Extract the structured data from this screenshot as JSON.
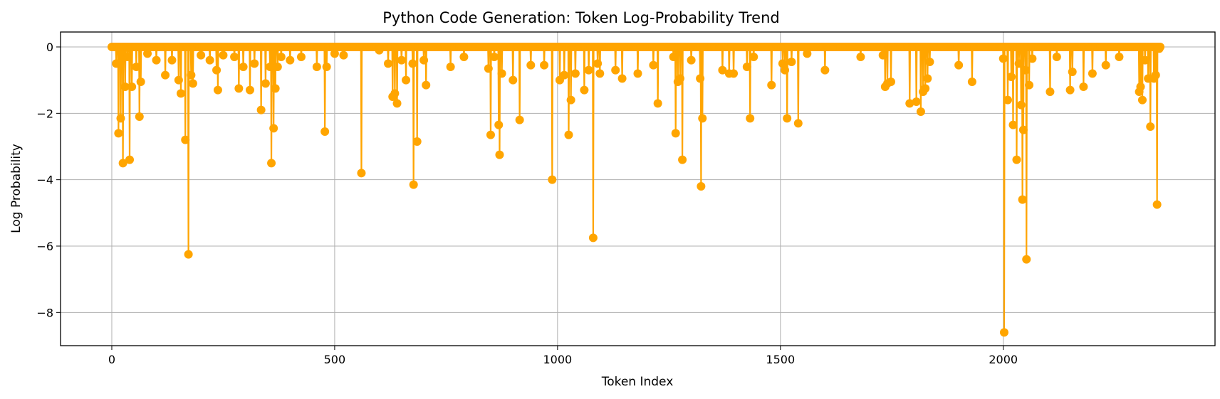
{
  "chart_data": {
    "type": "line",
    "title": "Python Code Generation: Token Log-Probability Trend",
    "xlabel": "Token Index",
    "ylabel": "Log Probability",
    "xlim": [
      -115,
      2475
    ],
    "ylim": [
      -9.0,
      0.45
    ],
    "xticks": [
      0,
      500,
      1000,
      1500,
      2000
    ],
    "yticks": [
      -8,
      -6,
      -4,
      -2,
      0
    ],
    "ytick_labels": [
      "−8",
      "−6",
      "−4",
      "−2",
      "0"
    ],
    "grid": true,
    "marker": "circle",
    "color": "#ffa500",
    "n_points": 2353,
    "baseline_value": 0,
    "dips": [
      [
        10,
        -0.5
      ],
      [
        15,
        -2.6
      ],
      [
        20,
        -2.15
      ],
      [
        25,
        -3.5
      ],
      [
        30,
        -1.2
      ],
      [
        35,
        -0.3
      ],
      [
        40,
        -3.4
      ],
      [
        45,
        -1.2
      ],
      [
        55,
        -0.6
      ],
      [
        62,
        -2.1
      ],
      [
        65,
        -1.05
      ],
      [
        80,
        -0.2
      ],
      [
        100,
        -0.4
      ],
      [
        120,
        -0.85
      ],
      [
        135,
        -0.4
      ],
      [
        150,
        -1.0
      ],
      [
        155,
        -1.4
      ],
      [
        165,
        -2.8
      ],
      [
        172,
        -6.25
      ],
      [
        178,
        -0.85
      ],
      [
        182,
        -1.1
      ],
      [
        200,
        -0.25
      ],
      [
        220,
        -0.4
      ],
      [
        235,
        -0.7
      ],
      [
        238,
        -1.3
      ],
      [
        250,
        -0.25
      ],
      [
        275,
        -0.3
      ],
      [
        285,
        -1.25
      ],
      [
        295,
        -0.6
      ],
      [
        310,
        -1.3
      ],
      [
        320,
        -0.5
      ],
      [
        335,
        -1.9
      ],
      [
        345,
        -1.1
      ],
      [
        355,
        -0.6
      ],
      [
        358,
        -3.5
      ],
      [
        363,
        -2.45
      ],
      [
        367,
        -1.25
      ],
      [
        372,
        -0.6
      ],
      [
        380,
        -0.3
      ],
      [
        400,
        -0.4
      ],
      [
        425,
        -0.3
      ],
      [
        460,
        -0.6
      ],
      [
        478,
        -2.55
      ],
      [
        482,
        -0.6
      ],
      [
        500,
        -0.2
      ],
      [
        520,
        -0.25
      ],
      [
        560,
        -3.8
      ],
      [
        600,
        -0.1
      ],
      [
        620,
        -0.5
      ],
      [
        630,
        -1.5
      ],
      [
        635,
        -1.4
      ],
      [
        640,
        -1.7
      ],
      [
        650,
        -0.4
      ],
      [
        660,
        -1.0
      ],
      [
        675,
        -0.5
      ],
      [
        677,
        -4.15
      ],
      [
        685,
        -2.85
      ],
      [
        700,
        -0.4
      ],
      [
        705,
        -1.15
      ],
      [
        760,
        -0.6
      ],
      [
        790,
        -0.3
      ],
      [
        845,
        -0.65
      ],
      [
        850,
        -2.65
      ],
      [
        858,
        -0.3
      ],
      [
        868,
        -2.35
      ],
      [
        870,
        -3.25
      ],
      [
        875,
        -0.8
      ],
      [
        900,
        -1.0
      ],
      [
        915,
        -2.2
      ],
      [
        940,
        -0.55
      ],
      [
        970,
        -0.55
      ],
      [
        988,
        -4.0
      ],
      [
        1005,
        -1.0
      ],
      [
        1015,
        -0.85
      ],
      [
        1025,
        -2.65
      ],
      [
        1030,
        -1.6
      ],
      [
        1040,
        -0.8
      ],
      [
        1060,
        -1.3
      ],
      [
        1070,
        -0.7
      ],
      [
        1080,
        -5.75
      ],
      [
        1090,
        -0.5
      ],
      [
        1095,
        -0.8
      ],
      [
        1130,
        -0.7
      ],
      [
        1145,
        -0.95
      ],
      [
        1180,
        -0.8
      ],
      [
        1215,
        -0.55
      ],
      [
        1225,
        -1.7
      ],
      [
        1260,
        -0.3
      ],
      [
        1265,
        -2.6
      ],
      [
        1270,
        -1.05
      ],
      [
        1275,
        -0.95
      ],
      [
        1280,
        -3.4
      ],
      [
        1300,
        -0.4
      ],
      [
        1320,
        -0.95
      ],
      [
        1322,
        -4.2
      ],
      [
        1325,
        -2.15
      ],
      [
        1370,
        -0.7
      ],
      [
        1385,
        -0.8
      ],
      [
        1395,
        -0.8
      ],
      [
        1425,
        -0.6
      ],
      [
        1432,
        -2.15
      ],
      [
        1440,
        -0.3
      ],
      [
        1480,
        -1.15
      ],
      [
        1505,
        -0.5
      ],
      [
        1510,
        -0.7
      ],
      [
        1515,
        -2.15
      ],
      [
        1525,
        -0.45
      ],
      [
        1540,
        -2.3
      ],
      [
        1560,
        -0.2
      ],
      [
        1600,
        -0.7
      ],
      [
        1680,
        -0.3
      ],
      [
        1730,
        -0.25
      ],
      [
        1735,
        -1.2
      ],
      [
        1740,
        -1.1
      ],
      [
        1748,
        -1.05
      ],
      [
        1790,
        -1.7
      ],
      [
        1805,
        -1.65
      ],
      [
        1815,
        -1.95
      ],
      [
        1820,
        -1.35
      ],
      [
        1825,
        -1.25
      ],
      [
        1830,
        -0.95
      ],
      [
        1835,
        -0.45
      ],
      [
        1900,
        -0.55
      ],
      [
        1930,
        -1.05
      ],
      [
        2000,
        -0.35
      ],
      [
        2002,
        -8.6
      ],
      [
        2010,
        -1.6
      ],
      [
        2018,
        -0.9
      ],
      [
        2022,
        -2.35
      ],
      [
        2030,
        -3.4
      ],
      [
        2035,
        -0.5
      ],
      [
        2040,
        -1.75
      ],
      [
        2043,
        -4.6
      ],
      [
        2045,
        -2.5
      ],
      [
        2050,
        -0.7
      ],
      [
        2052,
        -6.4
      ],
      [
        2058,
        -1.15
      ],
      [
        2065,
        -0.35
      ],
      [
        2105,
        -1.35
      ],
      [
        2120,
        -0.3
      ],
      [
        2150,
        -1.3
      ],
      [
        2155,
        -0.75
      ],
      [
        2180,
        -1.2
      ],
      [
        2200,
        -0.8
      ],
      [
        2230,
        -0.55
      ],
      [
        2260,
        -0.3
      ],
      [
        2305,
        -1.35
      ],
      [
        2308,
        -1.2
      ],
      [
        2312,
        -1.6
      ],
      [
        2318,
        -0.4
      ],
      [
        2325,
        -0.95
      ],
      [
        2330,
        -2.4
      ],
      [
        2338,
        -0.95
      ],
      [
        2342,
        -0.85
      ],
      [
        2345,
        -4.75
      ],
      [
        2350,
        -0.05
      ]
    ]
  }
}
